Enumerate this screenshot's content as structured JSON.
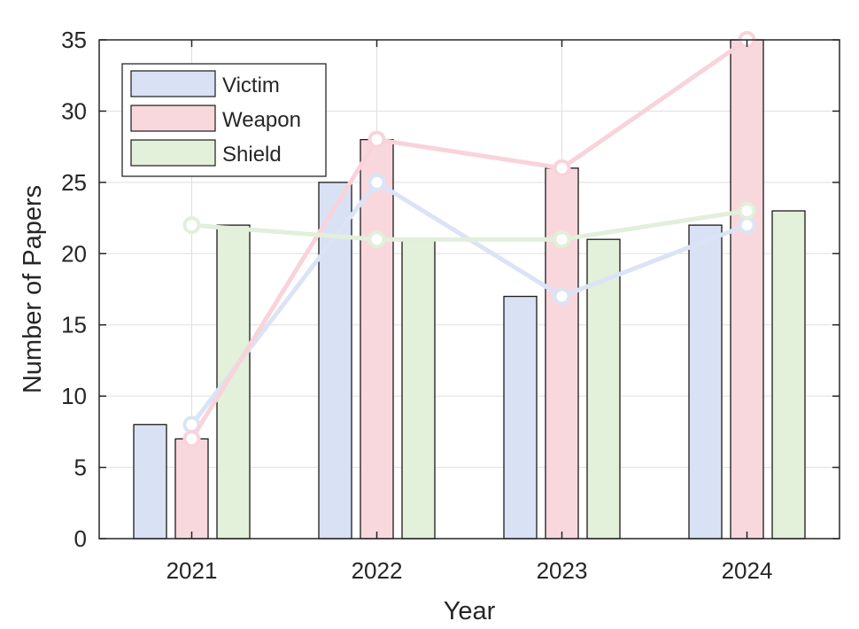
{
  "chart_data": {
    "type": "bar",
    "categories": [
      "2021",
      "2022",
      "2023",
      "2024"
    ],
    "xlabel": "Year",
    "ylabel": "Number of Papers",
    "ylim": [
      0,
      35
    ],
    "yticks": [
      0,
      5,
      10,
      15,
      20,
      25,
      30,
      35
    ],
    "grid": true,
    "legend_position": "top-left",
    "overlay_lines": true,
    "series": [
      {
        "name": "Victim",
        "values": [
          8,
          25,
          17,
          22
        ],
        "color": "#d9e1f5",
        "line_color": "#dbe3f6"
      },
      {
        "name": "Weapon",
        "values": [
          7,
          28,
          26,
          35
        ],
        "color": "#f9d8dd",
        "line_color": "#f8d4da"
      },
      {
        "name": "Shield",
        "values": [
          22,
          21,
          21,
          23
        ],
        "color": "#e3f0da",
        "line_color": "#e2efda"
      }
    ]
  }
}
